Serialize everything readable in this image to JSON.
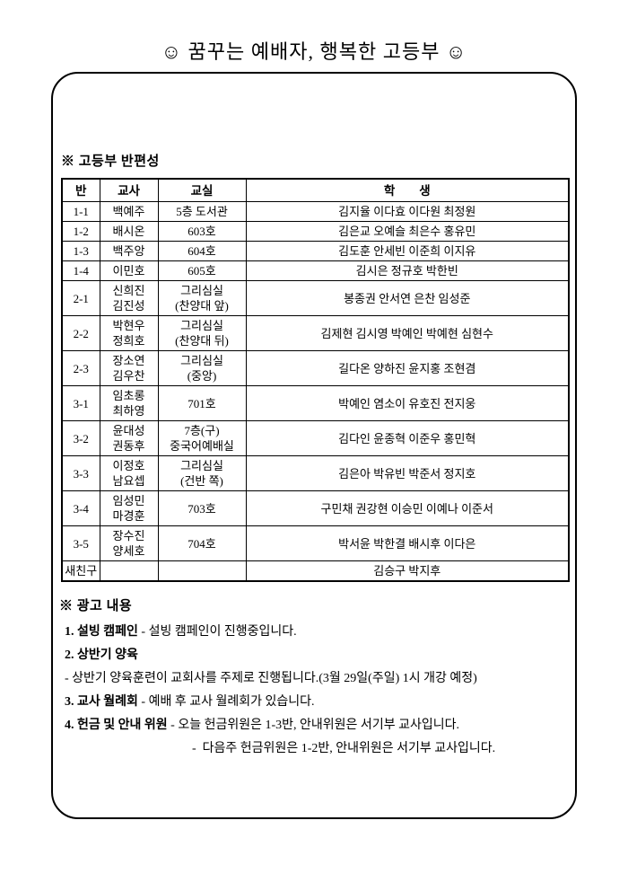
{
  "title": "☺ 꿈꾸는 예배자, 행복한 고등부 ☺",
  "section1": {
    "heading": "※ 고등부 반편성",
    "table": {
      "headers": [
        "반",
        "교사",
        "교실",
        "학        생"
      ],
      "rows": [
        {
          "class": "1-1",
          "teacher": "백예주",
          "room": "5층 도서관",
          "students": "김지율 이다효 이다원 최정원"
        },
        {
          "class": "1-2",
          "teacher": "배시온",
          "room": "603호",
          "students": "김은교 오예슬 최은수 홍유민"
        },
        {
          "class": "1-3",
          "teacher": "백주앙",
          "room": "604호",
          "students": "김도훈 안세빈 이준희 이지유"
        },
        {
          "class": "1-4",
          "teacher": "이민호",
          "room": "605호",
          "students": "김시은 정규호 박한빈"
        },
        {
          "class": "2-1",
          "teacher": "신희진\n김진성",
          "room": "그리심실\n(찬양대 앞)",
          "students": "봉종권 안서연 은찬 임성준"
        },
        {
          "class": "2-2",
          "teacher": "박현우\n정희호",
          "room": "그리심실\n(찬양대 뒤)",
          "students": "김제현 김시영 박예인 박예현 심현수"
        },
        {
          "class": "2-3",
          "teacher": "장소연\n김우찬",
          "room": "그리심실\n(중앙)",
          "students": "길다온 양하진 윤지홍 조현겸"
        },
        {
          "class": "3-1",
          "teacher": "임초롱\n최하영",
          "room": "701호",
          "students": "박예인 염소이 유호진 전지웅"
        },
        {
          "class": "3-2",
          "teacher": "윤대성\n권동후",
          "room": "7층(구)\n중국어예배실",
          "students": "김다인 윤종혁 이준우 홍민혁"
        },
        {
          "class": "3-3",
          "teacher": "이정호\n남요셉",
          "room": "그리심실\n(건반 쪽)",
          "students": "김은아 박유빈 박준서 정지호"
        },
        {
          "class": "3-4",
          "teacher": "임성민\n마경훈",
          "room": "703호",
          "students": "구민채 권강현 이승민 이예나 이준서"
        },
        {
          "class": "3-5",
          "teacher": "장수진\n양세호",
          "room": "704호",
          "students": "박서윤 박한결 배시후 이다은"
        },
        {
          "class": "새친구",
          "teacher": "",
          "room": "",
          "students": "김승구 박지후"
        }
      ]
    }
  },
  "announcements": {
    "heading": "※ 광고 내용",
    "lines": [
      {
        "bold": "1. 설빙 캠페인",
        "text": " - 설빙 캠페인이 진행중입니다."
      },
      {
        "bold": "2. 상반기 양육",
        "text": ""
      },
      {
        "bold": "",
        "text": "- 상반기 양육훈련이 교회사를 주제로 진행됩니다.(3월 29일(주일) 1시 개강 예정)"
      },
      {
        "bold": "3. 교사 월례회",
        "text": " - 예배 후 교사 월례회가 있습니다."
      },
      {
        "bold": "4. 헌금 및 안내 위원",
        "text": " - 오늘 헌금위원은 1-3반, 안내위원은 서기부 교사입니다."
      },
      {
        "bold": "",
        "text": "-  다음주 헌금위원은 1-2반, 안내위원은 서기부 교사입니다."
      }
    ]
  }
}
